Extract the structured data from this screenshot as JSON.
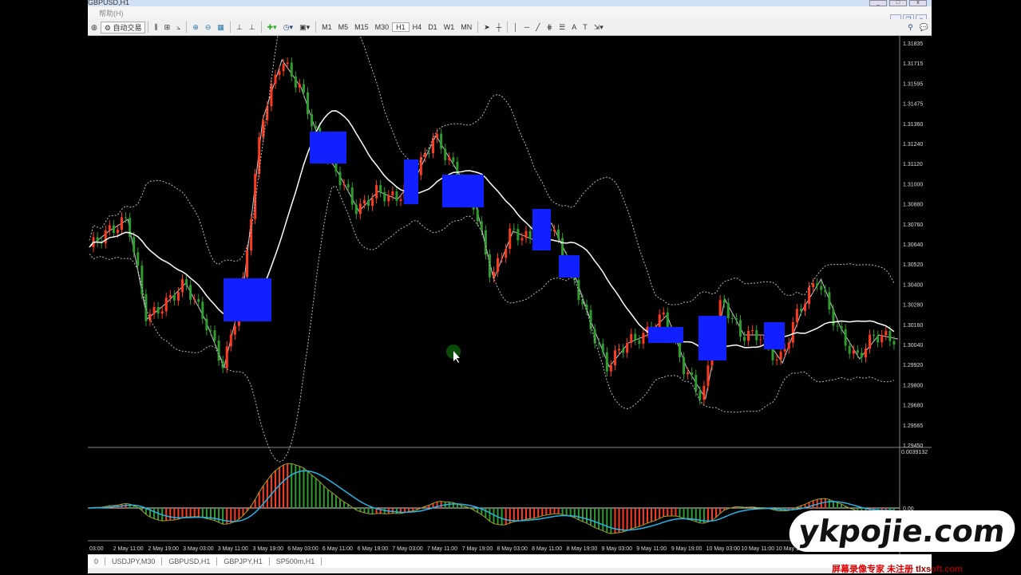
{
  "window": {
    "title": "GBPUSD,H1",
    "menu": "帮助(H)"
  },
  "toolbar": {
    "auto_trade": "自动交易",
    "timeframes": [
      "M1",
      "M5",
      "M15",
      "M30",
      "H1",
      "H4",
      "D1",
      "W1",
      "MN"
    ],
    "active_timeframe": "H1"
  },
  "price_axis": [
    "1.31835",
    "1.31715",
    "1.31595",
    "1.31475",
    "1.31360",
    "1.31240",
    "1.31120",
    "1.31000",
    "1.30880",
    "1.30760",
    "1.30640",
    "1.30520",
    "1.30400",
    "1.30280",
    "1.30160",
    "1.30040",
    "1.29920",
    "1.29800",
    "1.29680",
    "1.29565",
    "1.29450"
  ],
  "indicator_axis": {
    "top": "0.0039132",
    "zero": "0.00"
  },
  "time_axis": [
    "03:00",
    "2 May 11:00",
    "2 May 19:00",
    "3 May 03:00",
    "3 May 11:00",
    "3 May 19:00",
    "6 May 03:00",
    "6 May 11:00",
    "6 May 19:00",
    "7 May 03:00",
    "7 May 11:00",
    "7 May 19:00",
    "8 May 03:00",
    "8 May 11:00",
    "8 May 19:00",
    "9 May 03:00",
    "9 May 11:00",
    "9 May 19:00",
    "10 May 03:00",
    "10 May 11:00",
    "10 May 19:00"
  ],
  "tabs": [
    "0",
    "USDJPY,M30",
    "GBPUSD,H1",
    "GBPJPY,H1",
    "SP500m,H1"
  ],
  "watermark": {
    "logo": "ykpojie.com",
    "recorder": "屏幕录像专家 未注册",
    "site": "tlxsoft.com"
  },
  "colors": {
    "bull": "#ff3b1f",
    "bear": "#2e9d2e",
    "ma": "#ffffff",
    "band": "#bbbbbb",
    "signal": "#28b4e6",
    "box": "#1020ff"
  },
  "chart_data": {
    "type": "candlestick",
    "symbol": "GBPUSD",
    "timeframe": "H1",
    "key_closes": [
      1.30624,
      1.30718,
      1.30789,
      1.30198,
      1.30292,
      1.30411,
      1.30198,
      1.29914,
      1.30387,
      1.31381,
      1.31736,
      1.3157,
      1.31239,
      1.31049,
      1.30837,
      1.30955,
      1.30908,
      1.31049,
      1.31286,
      1.31097,
      1.30908,
      1.30434,
      1.30718,
      1.30671,
      1.30766,
      1.30529,
      1.30198,
      1.29914,
      1.30056,
      1.30103,
      1.30221,
      1.29914,
      1.29725,
      1.30316,
      1.30103,
      1.30103,
      1.29937,
      1.30245,
      1.30434,
      1.3015,
      1.29961,
      1.30103,
      1.30079
    ],
    "ylim": [
      1.2945,
      1.31835
    ]
  }
}
